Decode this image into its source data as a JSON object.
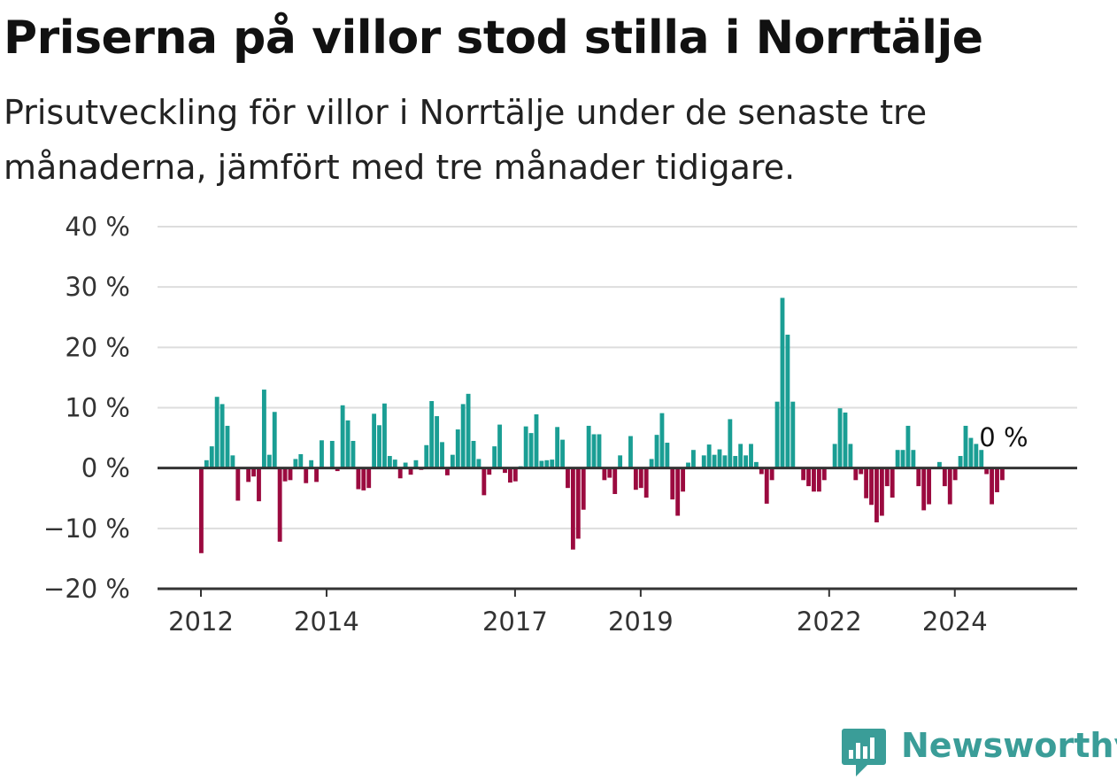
{
  "title": "Priserna på villor stod stilla i Norrtälje",
  "subtitle": "Prisutveckling för villor i Norrtälje under de senaste tre månaderna, jämfört med tre månader tidigare.",
  "brand": {
    "name": "Newsworthy"
  },
  "colors": {
    "positive": "#1a9e94",
    "negative": "#9b0a3f",
    "grid": "#dddddd",
    "axis": "#333333",
    "brand": "#3a9d98"
  },
  "chart_data": {
    "type": "bar",
    "ylim": [
      -20,
      40
    ],
    "y_ticks": [
      40,
      30,
      20,
      10,
      0,
      -10,
      -20
    ],
    "y_tick_labels": [
      "40 %",
      "30 %",
      "20 %",
      "10 %",
      "0 %",
      "−10 %",
      "−20 %"
    ],
    "x_ticks": [
      2012,
      2014,
      2017,
      2019,
      2022,
      2024
    ],
    "x_tick_labels": [
      "2012",
      "2014",
      "2017",
      "2019",
      "2022",
      "2024"
    ],
    "x_start": 2012,
    "months_per_bar": 1,
    "annotation": "0 %",
    "values": [
      -14.1,
      1.3,
      3.6,
      11.8,
      10.6,
      7.0,
      2.1,
      -5.4,
      0,
      -2.3,
      -1.4,
      -5.5,
      13.0,
      2.2,
      9.3,
      -12.2,
      -2.2,
      -2.0,
      1.5,
      2.3,
      -2.5,
      1.3,
      -2.3,
      4.6,
      0,
      4.5,
      -0.5,
      10.4,
      7.9,
      4.5,
      -3.5,
      -3.7,
      -3.3,
      9.0,
      7.1,
      10.7,
      2.0,
      1.4,
      -1.7,
      0.9,
      -1.1,
      1.3,
      -0.3,
      3.8,
      11.1,
      8.6,
      4.3,
      -1.2,
      2.2,
      6.4,
      10.6,
      12.3,
      4.5,
      1.5,
      -4.5,
      -1.1,
      3.6,
      7.2,
      -0.8,
      -2.4,
      -2.2,
      0.3,
      6.9,
      5.8,
      8.9,
      1.2,
      1.3,
      1.4,
      6.8,
      4.7,
      -3.3,
      -13.5,
      -11.7,
      -6.9,
      7.0,
      5.6,
      5.6,
      -2.0,
      -1.6,
      -4.3,
      2.1,
      0,
      5.3,
      -3.6,
      -3.3,
      -4.9,
      1.5,
      5.5,
      9.1,
      4.2,
      -5.2,
      -7.9,
      -3.9,
      0.9,
      3.0,
      0,
      2.1,
      3.9,
      2.2,
      3.1,
      2.1,
      8.1,
      2.0,
      4.0,
      2.1,
      4.0,
      1.0,
      -1.0,
      -5.9,
      -2.0,
      11.0,
      28.2,
      22.1,
      11.0,
      0,
      -2.0,
      -3.0,
      -3.9,
      -3.9,
      -2.0,
      0,
      4.0,
      9.9,
      9.2,
      4.0,
      -2.0,
      -1.0,
      -5.0,
      -6.1,
      -9.0,
      -7.9,
      -3.0,
      -4.9,
      3.0,
      3.0,
      7.0,
      3.0,
      -3.0,
      -7.0,
      -6.0,
      0,
      1.0,
      -3.0,
      -6.0,
      -2.0,
      2.0,
      7.0,
      5.0,
      4.0,
      3.0,
      -1.0,
      -6.0,
      -4.0,
      -2.0
    ]
  }
}
